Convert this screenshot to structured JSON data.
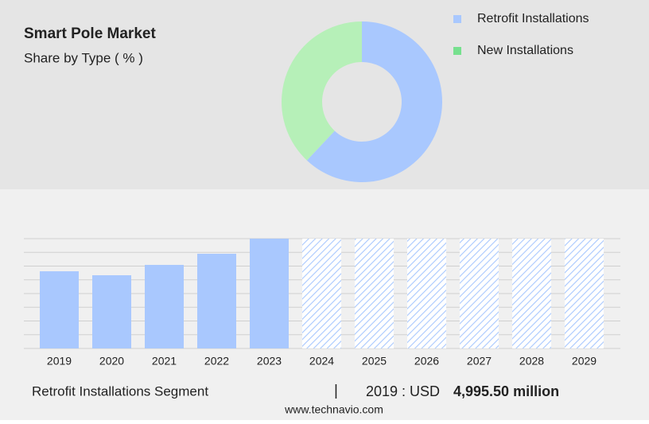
{
  "chart_data": [
    {
      "type": "donut",
      "title": "Smart Pole Market",
      "subtitle": "Share by Type ( % )",
      "categories": [
        "Retrofit Installations",
        "New Installations"
      ],
      "values": [
        62,
        38
      ],
      "colors": [
        "#a9c8fe",
        "#b6f0b8"
      ],
      "legend_colors": [
        "#a9c8fe",
        "#77e08f"
      ]
    },
    {
      "type": "bar",
      "categories": [
        "2019",
        "2020",
        "2021",
        "2022",
        "2023",
        "2024",
        "2025",
        "2026",
        "2027",
        "2028",
        "2029"
      ],
      "values": [
        4995.5,
        4738,
        5408,
        6129,
        7107,
        null,
        null,
        null,
        null,
        null,
        null
      ],
      "color": "#a9c8fe",
      "ylim": [
        0,
        7107
      ],
      "grid": true
    }
  ],
  "footer": {
    "segment": "Retrofit Installations Segment",
    "separator": "|",
    "year_label": "2019 : USD",
    "value_text": "4,995.50 million",
    "source": "www.technavio.com"
  }
}
